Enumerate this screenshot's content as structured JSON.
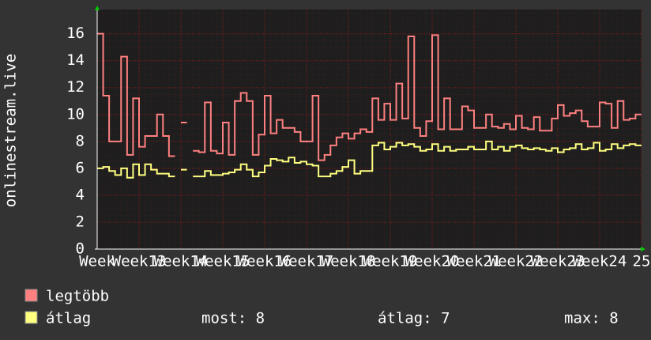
{
  "chart_data": {
    "type": "line",
    "step": true,
    "y_label": "onlinestream.live",
    "x": [
      0,
      1,
      2,
      3,
      4,
      5,
      6,
      7,
      8,
      9,
      10,
      11,
      12,
      13,
      14,
      15,
      16,
      17,
      18,
      19,
      20,
      21,
      22,
      23,
      24,
      25,
      26,
      27,
      28,
      29,
      30,
      31,
      32,
      33,
      34,
      35,
      36,
      37,
      38,
      39,
      40,
      41,
      42,
      43,
      44,
      45,
      46,
      47,
      48,
      49,
      50,
      51,
      52,
      53,
      54,
      55,
      56,
      57,
      58,
      59,
      60,
      61,
      62,
      63,
      64,
      65,
      66,
      67,
      68,
      69,
      70,
      71,
      72,
      73,
      74,
      75,
      76,
      77,
      78,
      79,
      80,
      81,
      82,
      83,
      84,
      85,
      86,
      87,
      88,
      89,
      90
    ],
    "xlim": [
      0,
      91
    ],
    "xticks": [
      {
        "value": 0,
        "label": "Week"
      },
      {
        "value": 7,
        "label": "Week13"
      },
      {
        "value": 14,
        "label": "Week14"
      },
      {
        "value": 21,
        "label": "Week15"
      },
      {
        "value": 28,
        "label": "Week16"
      },
      {
        "value": 35,
        "label": "Week17"
      },
      {
        "value": 42,
        "label": "Week18"
      },
      {
        "value": 49,
        "label": "Week19"
      },
      {
        "value": 56,
        "label": "Week20"
      },
      {
        "value": 63,
        "label": "Week21"
      },
      {
        "value": 70,
        "label": "Week22"
      },
      {
        "value": 77,
        "label": "Week23"
      },
      {
        "value": 84,
        "label": "Week24"
      },
      {
        "value": 91,
        "label": "25"
      }
    ],
    "ylim": [
      0,
      17.8
    ],
    "yticks": [
      0,
      2,
      4,
      6,
      8,
      10,
      12,
      14,
      16
    ],
    "grid": true,
    "series": [
      {
        "name": "legtöbb",
        "color": "#ff8080",
        "values": [
          16,
          11.4,
          8,
          8,
          14.3,
          7,
          11.2,
          7.6,
          8.4,
          8.4,
          10,
          8.4,
          6.9,
          null,
          9.4,
          null,
          7.3,
          7.2,
          10.9,
          7.3,
          7.1,
          9.4,
          7,
          11,
          11.6,
          11,
          7,
          8.5,
          11.4,
          8.6,
          9.6,
          9,
          9,
          8.7,
          8,
          8,
          11.4,
          6.6,
          7,
          7.7,
          8.3,
          8.6,
          8.2,
          8.6,
          8.9,
          8.7,
          11.2,
          9.6,
          10.8,
          9.6,
          12.3,
          9.7,
          15.8,
          9,
          8.4,
          9.5,
          15.9,
          8.9,
          11.2,
          8.9,
          8.9,
          10.6,
          10.3,
          9,
          9,
          10,
          9.1,
          9,
          9.3,
          8.9,
          9.9,
          9,
          8.9,
          9.8,
          8.8,
          8.8,
          9.7,
          10.7,
          9.9,
          10.1,
          10.3,
          9.5,
          9.1,
          9.1,
          10.9,
          10.8,
          9,
          11,
          9.6,
          9.7,
          10
        ]
      },
      {
        "name": "átlag",
        "color": "#ffff80",
        "values": [
          6,
          6.1,
          5.8,
          5.5,
          6,
          5.3,
          6.3,
          5.5,
          6.3,
          5.9,
          5.6,
          5.6,
          5.4,
          null,
          5.9,
          null,
          5.4,
          5.4,
          5.8,
          5.5,
          5.5,
          5.6,
          5.7,
          5.9,
          6.3,
          5.9,
          5.4,
          5.7,
          6.2,
          6.7,
          6.6,
          6.5,
          6.8,
          6.4,
          6.5,
          6.3,
          6.2,
          5.4,
          5.4,
          5.6,
          5.8,
          6.1,
          6.6,
          5.6,
          5.8,
          5.8,
          7.7,
          7.9,
          7.4,
          7.6,
          7.9,
          7.7,
          7.8,
          7.6,
          7.3,
          7.4,
          7.8,
          7.3,
          7.6,
          7.3,
          7.4,
          7.4,
          7.6,
          7.4,
          7.4,
          8,
          7.4,
          7.6,
          7.3,
          7.6,
          7.7,
          7.5,
          7.4,
          7.5,
          7.4,
          7.3,
          7.5,
          7.2,
          7.4,
          7.5,
          7.8,
          7.4,
          7.5,
          7.9,
          7.3,
          7.4,
          7.8,
          7.5,
          7.7,
          7.8,
          7.7
        ]
      }
    ],
    "stats": [
      "most: 8",
      "átlag: 7",
      "max: 8"
    ]
  }
}
